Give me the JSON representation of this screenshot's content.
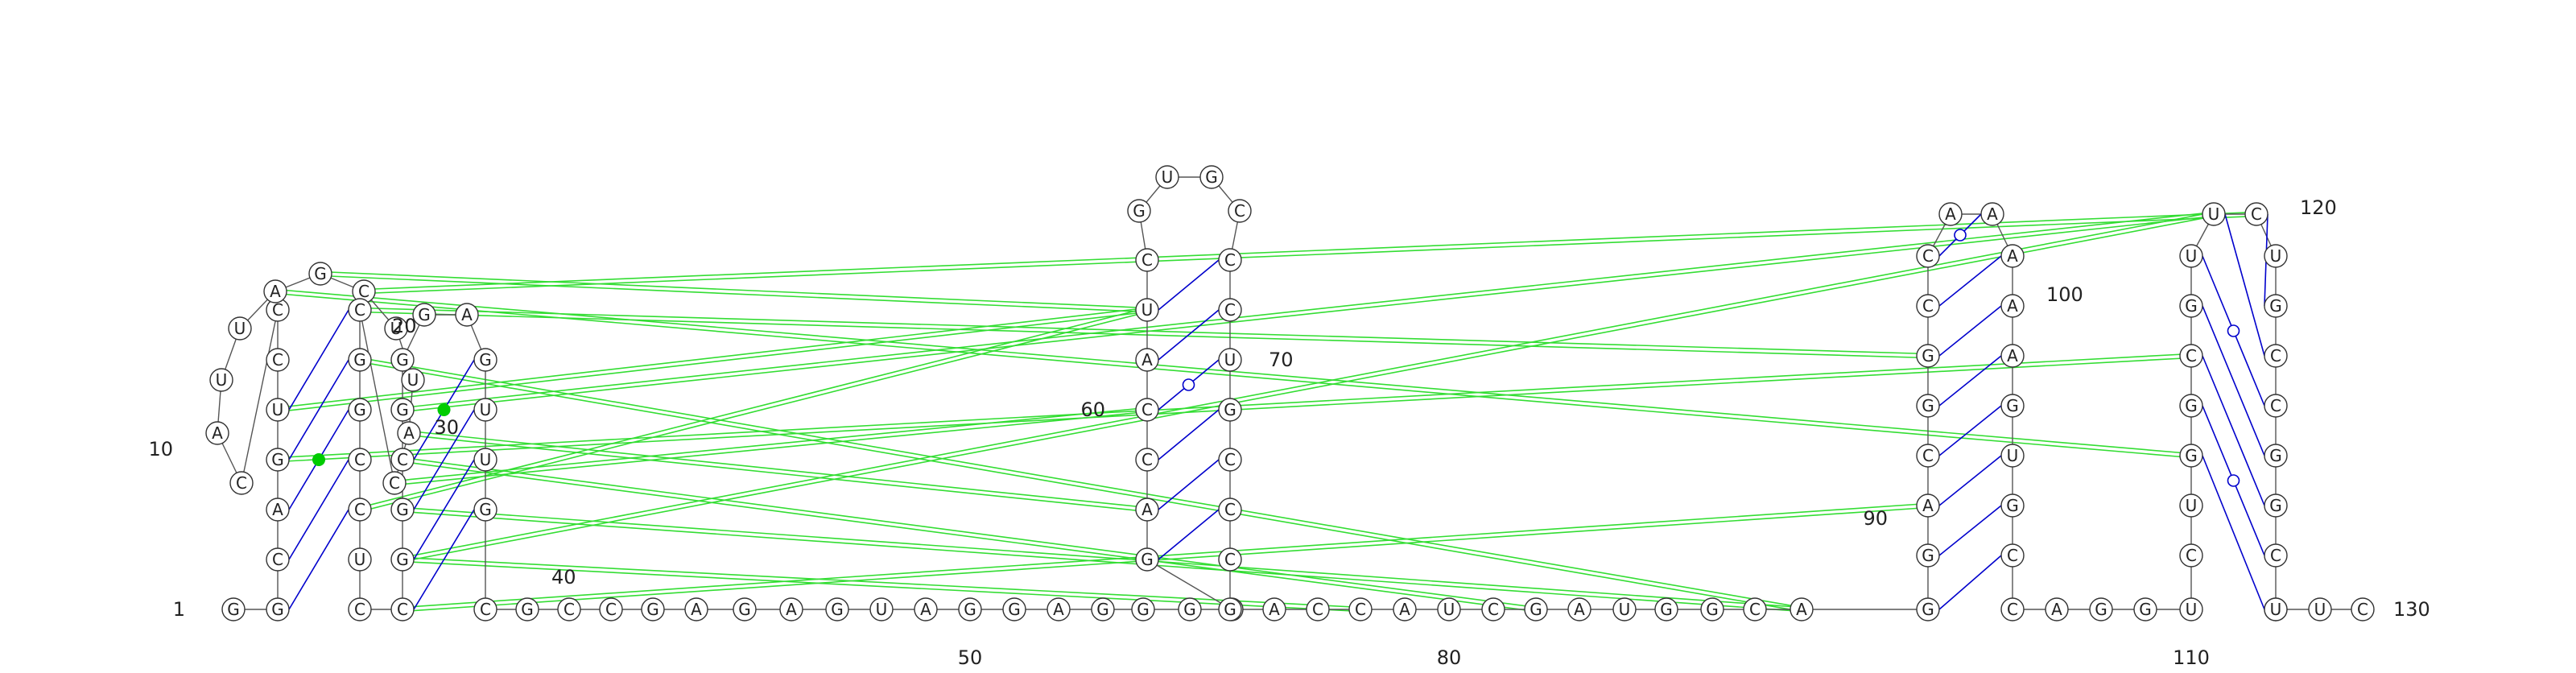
{
  "diagram": {
    "sequence": "GGCAGUCCCAUUAGCUUACCGGCCUCCGGCGGGAGUUGCGCCGAGAGUAGGAGGGAGACCAUCGUGCCCUGCCCGACCAUCGAUGGCAGGACGGCCAAAAAGUGCCAGGUCUGGCGUUCUGCCGGCAUUC",
    "canonical_pairs": [
      [
        2,
        24
      ],
      [
        3,
        23
      ],
      [
        5,
        21
      ],
      [
        6,
        20
      ],
      [
        27,
        38
      ],
      [
        28,
        37
      ],
      [
        29,
        36
      ],
      [
        57,
        73
      ],
      [
        58,
        72
      ],
      [
        59,
        71
      ],
      [
        61,
        69
      ],
      [
        62,
        68
      ],
      [
        89,
        105
      ],
      [
        90,
        104
      ],
      [
        91,
        103
      ],
      [
        92,
        102
      ],
      [
        93,
        101
      ],
      [
        94,
        100
      ],
      [
        95,
        99
      ],
      [
        113,
        127
      ],
      [
        115,
        125
      ],
      [
        116,
        124
      ],
      [
        118,
        122
      ],
      [
        119,
        121
      ],
      [
        120,
        120
      ]
    ],
    "gu_pairs": [
      [
        4,
        22
      ],
      [
        30,
        35
      ],
      [
        60,
        70
      ],
      [
        96,
        98
      ],
      [
        114,
        126
      ],
      [
        117,
        123
      ]
    ],
    "tertiary_lines": [
      {
        "from": 5,
        "to": 115
      },
      {
        "from": 6,
        "to": 62
      },
      {
        "from": 13,
        "to": 113
      },
      {
        "from": 14,
        "to": 62
      },
      {
        "from": 15,
        "to": 119
      },
      {
        "from": 18,
        "to": 58
      },
      {
        "from": 19,
        "to": 60
      },
      {
        "from": 20,
        "to": 94
      },
      {
        "from": 21,
        "to": 88
      },
      {
        "from": 24,
        "to": 62
      },
      {
        "from": 27,
        "to": 91
      },
      {
        "from": 28,
        "to": 78
      },
      {
        "from": 28,
        "to": 118
      },
      {
        "from": 29,
        "to": 88
      },
      {
        "from": 30,
        "to": 82
      },
      {
        "from": 31,
        "to": 118
      }
    ],
    "number_labels": [
      {
        "value": "1",
        "at": 1
      },
      {
        "value": "10",
        "at": 10
      },
      {
        "value": "20",
        "at": 20
      },
      {
        "value": "30",
        "at": 30
      },
      {
        "value": "40",
        "at": 40
      },
      {
        "value": "50",
        "at": 50
      },
      {
        "value": "60",
        "at": 60
      },
      {
        "value": "70",
        "at": 70
      },
      {
        "value": "80",
        "at": 80
      },
      {
        "value": "90",
        "at": 90
      },
      {
        "value": "100",
        "at": 100
      },
      {
        "value": "110",
        "at": 110
      },
      {
        "value": "120",
        "at": 120
      },
      {
        "value": "130",
        "at": 130
      }
    ],
    "colors": {
      "backbone": "#555555",
      "canonical_pair": "#0000cc",
      "gu_pair": "#0000cc",
      "noncanonical_pair": "#00cc00",
      "tertiary_interaction": "#33dd33",
      "nucleotide_fill": "#ffffff",
      "nucleotide_stroke": "#333333"
    }
  }
}
